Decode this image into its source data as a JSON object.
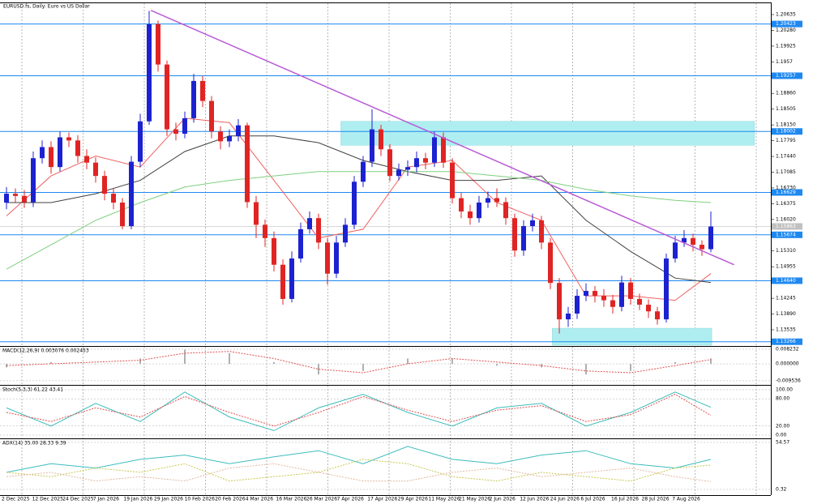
{
  "chart_data": {
    "type": "candlestick",
    "title": "EURUSD.fs, Daily: Euro vs US Dollar",
    "up_color": "#1c22d0",
    "down_color": "#e02424",
    "open": [
      1.164,
      1.166,
      1.1655,
      1.1641,
      1.174,
      1.1765,
      1.172,
      1.1787,
      1.178,
      1.1745,
      1.173,
      1.17,
      1.166,
      1.164,
      1.1587,
      1.1732,
      1.1823,
      1.2042,
      1.1951,
      1.1805,
      1.1795,
      1.183,
      1.1914,
      1.1869,
      1.18,
      1.1778,
      1.179,
      1.1814,
      1.1641,
      1.159,
      1.156,
      1.15,
      1.1423,
      1.1514,
      1.158,
      1.1605,
      1.155,
      1.148,
      1.155,
      1.159,
      1.1687,
      1.1732,
      1.1805,
      1.176,
      1.17,
      1.1714,
      1.172,
      1.174,
      1.173,
      1.1787,
      1.173,
      1.165,
      1.162,
      1.1605,
      1.164,
      1.165,
      1.1641,
      1.1605,
      1.1532,
      1.1587,
      1.16,
      1.155,
      1.1459,
      1.1377,
      1.139,
      1.143,
      1.1441,
      1.143,
      1.142,
      1.1405,
      1.146,
      1.1423,
      1.141,
      1.1395,
      1.1377,
      1.1514,
      1.155,
      1.156,
      1.1545,
      1.1535
    ],
    "high": [
      1.1675,
      1.1672,
      1.1668,
      1.1755,
      1.178,
      1.1778,
      1.18,
      1.1798,
      1.1792,
      1.176,
      1.1742,
      1.1712,
      1.1672,
      1.165,
      1.1745,
      1.184,
      1.2072,
      1.205,
      1.196,
      1.182,
      1.1845,
      1.193,
      1.1925,
      1.188,
      1.1812,
      1.1805,
      1.1828,
      1.182,
      1.1655,
      1.1602,
      1.1575,
      1.1512,
      1.153,
      1.1595,
      1.162,
      1.1615,
      1.156,
      1.1565,
      1.1605,
      1.17,
      1.1745,
      1.185,
      1.1815,
      1.1772,
      1.1728,
      1.1735,
      1.1755,
      1.1752,
      1.18,
      1.1798,
      1.174,
      1.1662,
      1.1635,
      1.1655,
      1.1665,
      1.1672,
      1.1652,
      1.1615,
      1.16,
      1.1615,
      1.161,
      1.156,
      1.147,
      1.1405,
      1.1445,
      1.1458,
      1.1452,
      1.1445,
      1.1432,
      1.1475,
      1.147,
      1.1435,
      1.1422,
      1.1405,
      1.1525,
      1.1565,
      1.1578,
      1.157,
      1.1555,
      1.162
    ],
    "low": [
      1.1625,
      1.164,
      1.1628,
      1.163,
      1.1728,
      1.1705,
      1.171,
      1.1765,
      1.173,
      1.1715,
      1.1685,
      1.1645,
      1.1625,
      1.158,
      1.158,
      1.172,
      1.1815,
      1.1935,
      1.179,
      1.178,
      1.1785,
      1.182,
      1.1855,
      1.1785,
      1.176,
      1.1765,
      1.1778,
      1.1628,
      1.156,
      1.154,
      1.1485,
      1.141,
      1.1415,
      1.1505,
      1.157,
      1.1535,
      1.1455,
      1.147,
      1.154,
      1.158,
      1.1675,
      1.172,
      1.1745,
      1.1688,
      1.169,
      1.17,
      1.1708,
      1.1715,
      1.172,
      1.1718,
      1.1638,
      1.1605,
      1.159,
      1.1595,
      1.1628,
      1.163,
      1.159,
      1.1518,
      1.152,
      1.1575,
      1.1535,
      1.1445,
      1.1345,
      1.136,
      1.1378,
      1.1418,
      1.1415,
      1.1405,
      1.139,
      1.1395,
      1.141,
      1.1398,
      1.138,
      1.1365,
      1.137,
      1.1505,
      1.154,
      1.153,
      1.152,
      1.1528
    ],
    "close": [
      1.166,
      1.1655,
      1.1641,
      1.174,
      1.1765,
      1.172,
      1.1787,
      1.178,
      1.1745,
      1.173,
      1.17,
      1.166,
      1.164,
      1.1587,
      1.1732,
      1.1823,
      1.2042,
      1.1951,
      1.1805,
      1.1795,
      1.183,
      1.1914,
      1.1869,
      1.18,
      1.1778,
      1.179,
      1.1814,
      1.1641,
      1.159,
      1.156,
      1.15,
      1.1423,
      1.1514,
      1.158,
      1.1605,
      1.155,
      1.148,
      1.155,
      1.159,
      1.1687,
      1.1732,
      1.1805,
      1.176,
      1.17,
      1.1714,
      1.172,
      1.174,
      1.173,
      1.1787,
      1.173,
      1.165,
      1.162,
      1.1605,
      1.164,
      1.165,
      1.1641,
      1.1605,
      1.1532,
      1.1587,
      1.16,
      1.155,
      1.1459,
      1.1377,
      1.139,
      1.143,
      1.1441,
      1.143,
      1.142,
      1.1405,
      1.146,
      1.1423,
      1.141,
      1.1395,
      1.1377,
      1.1514,
      1.155,
      1.156,
      1.1545,
      1.1535,
      1.1586
    ],
    "ylim": [
      1.13188,
      1.20872
    ],
    "yticks": [
      1.20635,
      {
        "value": 1.2028,
        "label": "1.20280"
      },
      1.19925,
      1.1957,
      {
        "value": 1.1886,
        "label": "1.18860"
      },
      1.18505,
      {
        "value": 1.1815,
        "label": "1.18150"
      },
      1.17795,
      {
        "value": 1.1744,
        "label": "1.17440"
      },
      1.17085,
      {
        "value": 1.1673,
        "label": "1.16730"
      },
      1.16375,
      {
        "value": 1.1602,
        "label": "1.16020"
      },
      {
        "value": 1.1531,
        "label": "1.15310"
      },
      1.14955,
      1.14245,
      {
        "value": 1.1389,
        "label": "1.13890"
      },
      1.13535
    ],
    "levels": [
      1.20423,
      1.19257,
      1.18002,
      1.16629,
      1.15674,
      {
        "value": 1.1464,
        "label": "1.14640"
      },
      1.13266
    ],
    "level_color": "#1e88f0",
    "current_price": 1.15863,
    "xlabels": [
      "2 Dec 2025",
      "12 Dec 2025",
      "24 Dec 2025",
      "7 Jan 2026",
      "19 Jan 2026",
      "29 Jan 2026",
      "10 Feb 2026",
      "20 Feb 2026",
      "4 Mar 2026",
      "16 Mar 2026",
      "26 Mar 2026",
      "7 Apr 2026",
      "17 Apr 2026",
      "29 Apr 2026",
      "11 May 2026",
      "21 May 2026",
      "2 Jun 2026",
      "12 Jun 2026",
      "24 Jun 2026",
      "6 Jul 2026",
      "16 Jul 2026",
      "28 Jul 2026",
      "7 Aug 2026"
    ],
    "ma_x": [
      0,
      5,
      10,
      15,
      20,
      25,
      30,
      35,
      40,
      45,
      50,
      55,
      60,
      65,
      70,
      75,
      79
    ],
    "moving_averages": [
      {
        "color": "#f06060",
        "values": [
          1.161,
          1.17,
          1.1745,
          1.172,
          1.183,
          1.182,
          1.169,
          1.156,
          1.158,
          1.172,
          1.1735,
          1.164,
          1.16,
          1.143,
          1.143,
          1.142,
          1.148
        ]
      },
      {
        "color": "#404040",
        "values": [
          1.164,
          1.164,
          1.166,
          1.169,
          1.1755,
          1.179,
          1.179,
          1.1775,
          1.1735,
          1.171,
          1.169,
          1.169,
          1.17,
          1.16,
          1.153,
          1.147,
          1.146
        ]
      },
      {
        "color": "#7fd07f",
        "values": [
          1.149,
          1.1545,
          1.16,
          1.164,
          1.1675,
          1.169,
          1.17,
          1.171,
          1.171,
          1.171,
          1.171,
          1.17,
          1.169,
          1.167,
          1.1655,
          1.1645,
          1.164
        ]
      }
    ],
    "trendline": {
      "color": "#b85ad6",
      "x": [
        16.2,
        81.6
      ],
      "y": [
        1.2073,
        1.15
      ]
    },
    "zones": [
      {
        "color": "#aeeef0",
        "x": [
          37.5,
          83.9
        ],
        "y": [
          1.1769,
          1.1823
        ]
      },
      {
        "color": "#aeeef0",
        "x": [
          61.2,
          79.1
        ],
        "y": [
          1.13188,
          1.1357
        ]
      }
    ],
    "indicators": [
      {
        "label": "MACD(12,26,9) 0.003076 0.002453",
        "ylim": [
          -0.0114,
          0.0096
        ],
        "yticks": [
          0.008232,
          {
            "value": 0,
            "label": "0.000000"
          },
          -0.009536
        ],
        "x": [
          0,
          5,
          10,
          15,
          20,
          25,
          30,
          35,
          40,
          45,
          50,
          55,
          60,
          65,
          70,
          75,
          79
        ],
        "series": [
          {
            "style": "histogram",
            "color": "#b0b0b0",
            "values": [
              -0.002,
              0.001,
              0,
              0.003,
              0.008,
              0.006,
              0.001,
              -0.006,
              -0.004,
              0.003,
              0.003,
              -0.001,
              -0.002,
              -0.006,
              -0.004,
              0.001,
              0.003076
            ]
          },
          {
            "style": "dotted",
            "color": "#e05050",
            "values": [
              -0.001,
              0,
              0.001,
              0.002,
              0.006,
              0.007,
              0.003,
              -0.003,
              -0.005,
              0,
              0.003,
              0.001,
              -0.001,
              -0.004,
              -0.005,
              -0.001,
              0.002453
            ]
          }
        ]
      },
      {
        "label": "Stoch(5,3,3) 61.22 43.41",
        "ylim": [
          -5.4,
          108.9
        ],
        "yticks": [
          {
            "value": 100,
            "label": "100.00"
          },
          {
            "value": 80,
            "label": "80.00"
          },
          {
            "value": 20,
            "label": "20.00"
          },
          {
            "value": 0,
            "label": "0.00"
          }
        ],
        "x": [
          0,
          5,
          10,
          15,
          20,
          25,
          30,
          35,
          40,
          45,
          50,
          55,
          60,
          65,
          70,
          75,
          79
        ],
        "series": [
          {
            "style": "solid",
            "color": "#3cbcbc",
            "values": [
              60,
              20,
              70,
              30,
              95,
              40,
              10,
              60,
              90,
              50,
              20,
              60,
              70,
              20,
              50,
              95,
              61.22
            ]
          },
          {
            "style": "dotted",
            "color": "#e05050",
            "values": [
              50,
              30,
              60,
              40,
              85,
              50,
              20,
              50,
              85,
              55,
              30,
              55,
              65,
              30,
              45,
              90,
              43.41
            ]
          }
        ]
      },
      {
        "label": "ADX(14) 35.00 28.33 9.39",
        "ylim": [
          -5.3,
          58.3
        ],
        "yticks": [
          54.57,
          0.32
        ],
        "x": [
          0,
          5,
          10,
          15,
          20,
          25,
          30,
          35,
          40,
          45,
          50,
          55,
          60,
          65,
          70,
          75,
          79
        ],
        "series": [
          {
            "style": "solid",
            "color": "#3cbcbc",
            "values": [
              20,
              30,
              25,
              35,
              40,
              30,
              38,
              45,
              30,
              50,
              35,
              30,
              40,
              45,
              30,
              25,
              35
            ]
          },
          {
            "style": "dotted",
            "color": "#c8c850",
            "values": [
              20,
              15,
              25,
              20,
              30,
              10,
              15,
              20,
              35,
              30,
              15,
              10,
              20,
              15,
              10,
              25,
              28.33
            ]
          },
          {
            "style": "dotted",
            "color": "#e0b8a0",
            "values": [
              15,
              20,
              10,
              15,
              10,
              25,
              30,
              20,
              10,
              10,
              20,
              25,
              15,
              20,
              25,
              15,
              9.39
            ]
          }
        ]
      }
    ]
  }
}
